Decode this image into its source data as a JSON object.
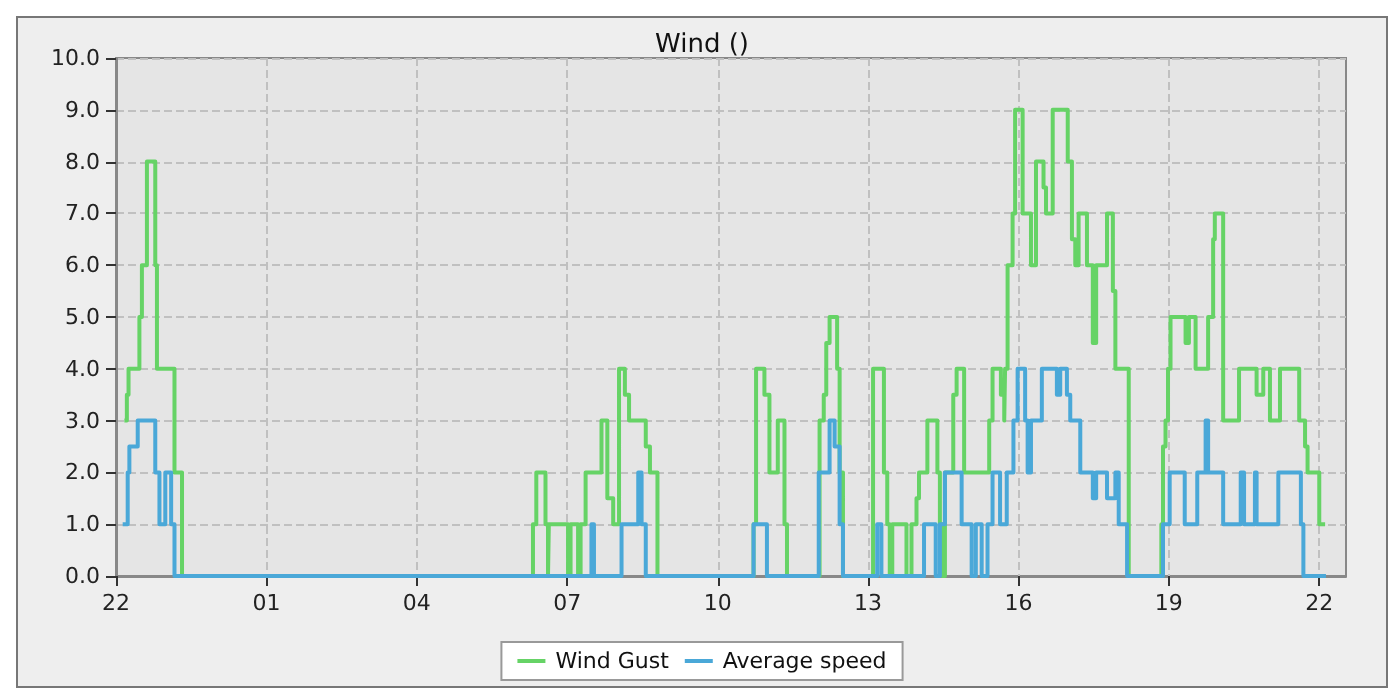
{
  "chart_data": {
    "type": "step",
    "title": "Wind ()",
    "xlim": [
      "--01-01T22:00",
      "--01-02T22:32"
    ],
    "xticks": [
      {
        "value": "--01-01T22:00",
        "label": "22"
      },
      {
        "value": "--01-02T01:00",
        "label": "01"
      },
      {
        "value": "--01-02T04:00",
        "label": "04"
      },
      {
        "value": "--01-02T07:00",
        "label": "07"
      },
      {
        "value": "--01-02T10:00",
        "label": "10"
      },
      {
        "value": "--01-02T13:00",
        "label": "13"
      },
      {
        "value": "--01-02T16:00",
        "label": "16"
      },
      {
        "value": "--01-02T19:00",
        "label": "19"
      },
      {
        "value": "--01-02T22:00",
        "label": "22"
      }
    ],
    "ylim": [
      0,
      10
    ],
    "yticks": [
      {
        "value": 0,
        "label": "0.0"
      },
      {
        "value": 1,
        "label": "1.0"
      },
      {
        "value": 2,
        "label": "2.0"
      },
      {
        "value": 3,
        "label": "3.0"
      },
      {
        "value": 4,
        "label": "4.0"
      },
      {
        "value": 5,
        "label": "5.0"
      },
      {
        "value": 6,
        "label": "6.0"
      },
      {
        "value": 7,
        "label": "7.0"
      },
      {
        "value": 8,
        "label": "8.0"
      },
      {
        "value": 9,
        "label": "9.0"
      },
      {
        "value": 10,
        "label": "10.0"
      }
    ],
    "grid": true,
    "legend": "bottom",
    "marker": "none",
    "line_style": "solid",
    "series": [
      {
        "name": "Wind Gust",
        "color": "#66d366",
        "x": [
          "--01-01T22:10",
          "--01-01T22:13",
          "--01-01T22:15",
          "--01-01T22:28",
          "--01-01T22:31",
          "--01-01T22:37",
          "--01-01T22:47",
          "--01-01T22:49",
          "--01-01T23:10",
          "--01-01T23:19",
          "--01-02T06:19",
          "--01-02T06:23",
          "--01-02T06:34",
          "--01-02T06:37",
          "--01-02T06:38",
          "--01-02T07:01",
          "--01-02T07:04",
          "--01-02T07:13",
          "--01-02T07:16",
          "--01-02T07:22",
          "--01-02T07:41",
          "--01-02T07:48",
          "--01-02T07:55",
          "--01-02T08:02",
          "--01-02T08:09",
          "--01-02T08:14",
          "--01-02T08:34",
          "--01-02T08:39",
          "--01-02T08:48",
          "--01-02T10:43",
          "--01-02T10:46",
          "--01-02T10:56",
          "--01-02T11:02",
          "--01-02T11:12",
          "--01-02T11:20",
          "--01-02T11:23",
          "--01-02T12:02",
          "--01-02T12:07",
          "--01-02T12:10",
          "--01-02T12:14",
          "--01-02T12:23",
          "--01-02T12:26",
          "--01-02T12:30",
          "--01-02T13:06",
          "--01-02T13:19",
          "--01-02T13:23",
          "--01-02T13:26",
          "--01-02T13:29",
          "--01-02T13:46",
          "--01-02T13:52",
          "--01-02T13:58",
          "--01-02T14:01",
          "--01-02T14:11",
          "--01-02T14:23",
          "--01-02T14:26",
          "--01-02T14:29",
          "--01-02T14:32",
          "--01-02T14:42",
          "--01-02T14:46",
          "--01-02T14:55",
          "--01-02T15:25",
          "--01-02T15:29",
          "--01-02T15:39",
          "--01-02T15:43",
          "--01-02T15:44",
          "--01-02T15:47",
          "--01-02T15:53",
          "--01-02T15:56",
          "--01-02T16:05",
          "--01-02T16:11",
          "--01-02T16:15",
          "--01-02T16:21",
          "--01-02T16:30",
          "--01-02T16:33",
          "--01-02T16:41",
          "--01-02T16:59",
          "--01-02T17:04",
          "--01-02T17:08",
          "--01-02T17:12",
          "--01-02T17:22",
          "--01-02T17:29",
          "--01-02T17:33",
          "--01-02T17:46",
          "--01-02T17:53",
          "--01-02T17:56",
          "--01-02T18:12",
          "--01-02T18:51",
          "--01-02T18:53",
          "--01-02T18:56",
          "--01-02T18:59",
          "--01-02T19:02",
          "--01-02T19:20",
          "--01-02T19:24",
          "--01-02T19:32",
          "--01-02T19:47",
          "--01-02T19:53",
          "--01-02T19:55",
          "--01-02T20:05",
          "--01-02T20:24",
          "--01-02T20:45",
          "--01-02T20:53",
          "--01-02T21:01",
          "--01-02T21:13",
          "--01-02T21:36",
          "--01-02T21:43",
          "--01-02T21:46",
          "--01-02T22:00",
          "--01-02T22:07"
        ],
        "values": [
          3,
          3.5,
          4,
          5,
          6,
          8,
          6,
          4,
          2,
          0,
          1,
          2,
          1,
          0,
          1,
          0,
          1,
          0,
          1,
          2,
          3,
          1.5,
          1,
          4,
          3.5,
          3,
          2.5,
          2,
          0,
          1,
          4,
          3.5,
          2,
          3,
          1,
          0,
          3,
          3.5,
          4.5,
          5,
          4,
          2,
          0,
          4,
          2,
          1,
          0,
          1,
          0,
          1,
          1.5,
          2,
          3,
          2,
          1,
          0,
          2,
          3.5,
          4,
          2,
          3,
          4,
          3.5,
          3,
          4,
          6,
          7,
          9,
          7,
          7,
          6,
          8,
          7.5,
          7,
          9,
          8,
          6.5,
          6,
          7,
          6,
          4.5,
          6,
          7,
          5.5,
          4,
          0,
          1,
          2.5,
          3,
          4,
          5,
          4.5,
          5,
          4,
          5,
          6.5,
          7,
          3,
          4,
          3.5,
          4,
          3,
          4,
          3,
          2.5,
          2,
          1,
          1
        ]
      },
      {
        "name": "Average speed",
        "color": "#4aa8d8",
        "x": [
          "--01-01T22:08",
          "--01-01T22:14",
          "--01-01T22:16",
          "--01-01T22:26",
          "--01-01T22:47",
          "--01-01T22:52",
          "--01-01T22:59",
          "--01-01T23:06",
          "--01-01T23:10",
          "--01-02T07:29",
          "--01-02T07:32",
          "--01-02T08:05",
          "--01-02T08:25",
          "--01-02T08:29",
          "--01-02T08:34",
          "--01-02T10:43",
          "--01-02T10:59",
          "--01-02T12:01",
          "--01-02T12:14",
          "--01-02T12:20",
          "--01-02T12:26",
          "--01-02T12:30",
          "--01-02T13:11",
          "--01-02T13:16",
          "--01-02T14:07",
          "--01-02T14:21",
          "--01-02T14:26",
          "--01-02T14:32",
          "--01-02T14:52",
          "--01-02T15:04",
          "--01-02T15:09",
          "--01-02T15:16",
          "--01-02T15:23",
          "--01-02T15:29",
          "--01-02T15:38",
          "--01-02T15:46",
          "--01-02T15:54",
          "--01-02T15:59",
          "--01-02T16:08",
          "--01-02T16:11",
          "--01-02T16:15",
          "--01-02T16:28",
          "--01-02T16:46",
          "--01-02T16:50",
          "--01-02T16:58",
          "--01-02T17:02",
          "--01-02T17:14",
          "--01-02T17:29",
          "--01-02T17:33",
          "--01-02T17:46",
          "--01-02T17:56",
          "--01-02T18:00",
          "--01-02T18:10",
          "--01-02T18:53",
          "--01-02T19:01",
          "--01-02T19:19",
          "--01-02T19:34",
          "--01-02T19:44",
          "--01-02T19:47",
          "--01-02T20:05",
          "--01-02T20:26",
          "--01-02T20:30",
          "--01-02T20:43",
          "--01-02T20:45",
          "--01-02T21:11",
          "--01-02T21:38",
          "--01-02T21:41",
          "--01-02T22:08"
        ],
        "values": [
          1,
          2,
          2.5,
          3,
          2,
          1,
          2,
          1,
          0,
          1,
          0,
          1,
          2,
          1,
          0,
          1,
          0,
          2,
          3,
          2.5,
          1,
          0,
          1,
          0,
          1,
          0,
          1,
          2,
          1,
          0,
          1,
          0,
          1,
          2,
          1,
          2,
          3,
          4,
          3,
          2,
          3,
          4,
          3.5,
          4,
          3.5,
          3,
          2,
          1.5,
          2,
          1.5,
          2,
          1,
          0,
          1,
          2,
          1,
          2,
          3,
          2,
          1,
          2,
          1,
          2,
          1,
          2,
          1,
          0,
          0
        ]
      }
    ]
  }
}
